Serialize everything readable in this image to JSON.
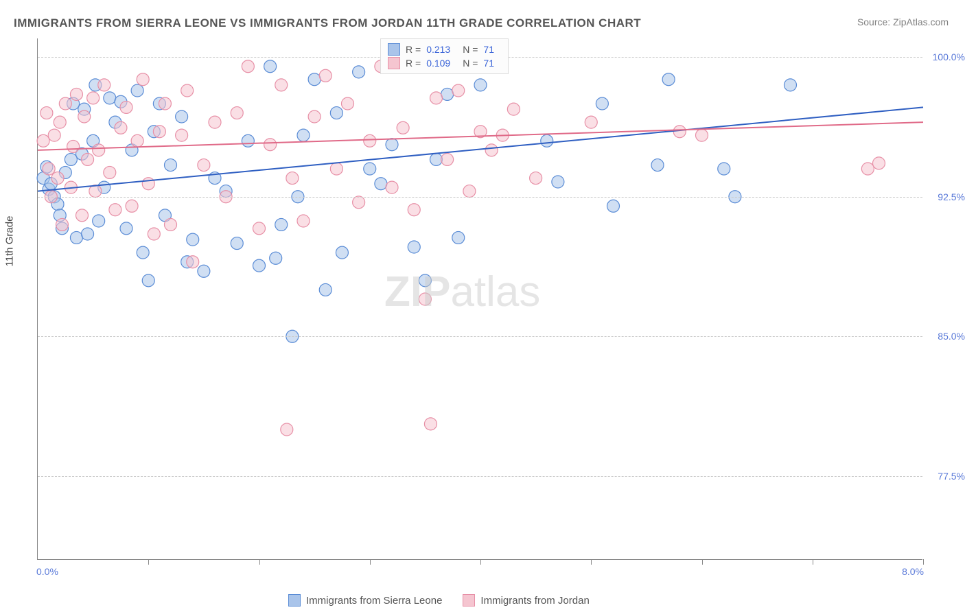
{
  "title": "IMMIGRANTS FROM SIERRA LEONE VS IMMIGRANTS FROM JORDAN 11TH GRADE CORRELATION CHART",
  "source": "Source: ZipAtlas.com",
  "axis": {
    "ytitle": "11th Grade",
    "xmin": 0.0,
    "xmax": 8.0,
    "xmin_label": "0.0%",
    "xmax_label": "8.0%",
    "ymin": 73.0,
    "ymax": 101.0,
    "ygrid": [
      77.5,
      85.0,
      92.5,
      100.0
    ],
    "ygrid_labels": [
      "77.5%",
      "85.0%",
      "92.5%",
      "100.0%"
    ],
    "xticks": [
      1.0,
      2.0,
      3.0,
      4.0,
      5.0,
      6.0,
      7.0,
      8.0
    ]
  },
  "series": [
    {
      "name": "Immigrants from Sierra Leone",
      "color_fill": "#a9c4ea",
      "color_stroke": "#5a8cd6",
      "line_color": "#2f5fc2",
      "R": "0.213",
      "N": "71",
      "regression": {
        "x1": 0.0,
        "y1": 92.8,
        "x2": 8.0,
        "y2": 97.3
      },
      "points": [
        [
          0.05,
          93.5
        ],
        [
          0.08,
          94.1
        ],
        [
          0.1,
          92.9
        ],
        [
          0.12,
          93.2
        ],
        [
          0.15,
          92.5
        ],
        [
          0.18,
          92.1
        ],
        [
          0.2,
          91.5
        ],
        [
          0.22,
          90.8
        ],
        [
          0.25,
          93.8
        ],
        [
          0.3,
          94.5
        ],
        [
          0.32,
          97.5
        ],
        [
          0.35,
          90.3
        ],
        [
          0.4,
          94.8
        ],
        [
          0.42,
          97.2
        ],
        [
          0.45,
          90.5
        ],
        [
          0.5,
          95.5
        ],
        [
          0.52,
          98.5
        ],
        [
          0.55,
          91.2
        ],
        [
          0.6,
          93.0
        ],
        [
          0.65,
          97.8
        ],
        [
          0.7,
          96.5
        ],
        [
          0.75,
          97.6
        ],
        [
          0.8,
          90.8
        ],
        [
          0.85,
          95.0
        ],
        [
          0.9,
          98.2
        ],
        [
          0.95,
          89.5
        ],
        [
          1.0,
          88.0
        ],
        [
          1.05,
          96.0
        ],
        [
          1.1,
          97.5
        ],
        [
          1.15,
          91.5
        ],
        [
          1.2,
          94.2
        ],
        [
          1.3,
          96.8
        ],
        [
          1.35,
          89.0
        ],
        [
          1.4,
          90.2
        ],
        [
          1.5,
          88.5
        ],
        [
          1.6,
          93.5
        ],
        [
          1.7,
          92.8
        ],
        [
          1.8,
          90.0
        ],
        [
          1.9,
          95.5
        ],
        [
          2.0,
          88.8
        ],
        [
          2.1,
          99.5
        ],
        [
          2.15,
          89.2
        ],
        [
          2.2,
          91.0
        ],
        [
          2.3,
          85.0
        ],
        [
          2.35,
          92.5
        ],
        [
          2.4,
          95.8
        ],
        [
          2.5,
          98.8
        ],
        [
          2.6,
          87.5
        ],
        [
          2.7,
          97.0
        ],
        [
          2.75,
          89.5
        ],
        [
          2.9,
          99.2
        ],
        [
          3.0,
          94.0
        ],
        [
          3.1,
          93.2
        ],
        [
          3.2,
          95.3
        ],
        [
          3.3,
          100.0
        ],
        [
          3.4,
          89.8
        ],
        [
          3.5,
          88.0
        ],
        [
          3.6,
          94.5
        ],
        [
          3.7,
          98.0
        ],
        [
          3.8,
          90.3
        ],
        [
          3.9,
          99.5
        ],
        [
          4.0,
          98.5
        ],
        [
          4.6,
          95.5
        ],
        [
          4.7,
          93.3
        ],
        [
          5.1,
          97.5
        ],
        [
          5.2,
          92.0
        ],
        [
          5.6,
          94.2
        ],
        [
          5.7,
          98.8
        ],
        [
          6.2,
          94.0
        ],
        [
          6.3,
          92.5
        ],
        [
          6.8,
          98.5
        ]
      ]
    },
    {
      "name": "Immigrants from Jordan",
      "color_fill": "#f5c5d0",
      "color_stroke": "#e78fa6",
      "line_color": "#e06a88",
      "R": "0.109",
      "N": "71",
      "regression": {
        "x1": 0.0,
        "y1": 95.0,
        "x2": 8.0,
        "y2": 96.5
      },
      "points": [
        [
          0.05,
          95.5
        ],
        [
          0.08,
          97.0
        ],
        [
          0.1,
          94.0
        ],
        [
          0.12,
          92.5
        ],
        [
          0.15,
          95.8
        ],
        [
          0.18,
          93.5
        ],
        [
          0.2,
          96.5
        ],
        [
          0.22,
          91.0
        ],
        [
          0.25,
          97.5
        ],
        [
          0.3,
          93.0
        ],
        [
          0.32,
          95.2
        ],
        [
          0.35,
          98.0
        ],
        [
          0.4,
          91.5
        ],
        [
          0.42,
          96.8
        ],
        [
          0.45,
          94.5
        ],
        [
          0.5,
          97.8
        ],
        [
          0.52,
          92.8
        ],
        [
          0.55,
          95.0
        ],
        [
          0.6,
          98.5
        ],
        [
          0.65,
          93.8
        ],
        [
          0.7,
          91.8
        ],
        [
          0.75,
          96.2
        ],
        [
          0.8,
          97.3
        ],
        [
          0.85,
          92.0
        ],
        [
          0.9,
          95.5
        ],
        [
          0.95,
          98.8
        ],
        [
          1.0,
          93.2
        ],
        [
          1.05,
          90.5
        ],
        [
          1.1,
          96.0
        ],
        [
          1.15,
          97.5
        ],
        [
          1.2,
          91.0
        ],
        [
          1.3,
          95.8
        ],
        [
          1.35,
          98.2
        ],
        [
          1.4,
          89.0
        ],
        [
          1.5,
          94.2
        ],
        [
          1.6,
          96.5
        ],
        [
          1.7,
          92.5
        ],
        [
          1.8,
          97.0
        ],
        [
          1.9,
          99.5
        ],
        [
          2.0,
          90.8
        ],
        [
          2.1,
          95.3
        ],
        [
          2.2,
          98.5
        ],
        [
          2.25,
          80.0
        ],
        [
          2.3,
          93.5
        ],
        [
          2.4,
          91.2
        ],
        [
          2.5,
          96.8
        ],
        [
          2.6,
          99.0
        ],
        [
          2.7,
          94.0
        ],
        [
          2.8,
          97.5
        ],
        [
          2.9,
          92.2
        ],
        [
          3.0,
          95.5
        ],
        [
          3.1,
          99.5
        ],
        [
          3.2,
          93.0
        ],
        [
          3.3,
          96.2
        ],
        [
          3.4,
          91.8
        ],
        [
          3.5,
          87.0
        ],
        [
          3.6,
          97.8
        ],
        [
          3.55,
          80.3
        ],
        [
          3.7,
          94.5
        ],
        [
          3.8,
          98.2
        ],
        [
          3.9,
          92.8
        ],
        [
          4.0,
          96.0
        ],
        [
          4.1,
          95.0
        ],
        [
          4.2,
          95.8
        ],
        [
          4.3,
          97.2
        ],
        [
          4.5,
          93.5
        ],
        [
          5.0,
          96.5
        ],
        [
          5.8,
          96.0
        ],
        [
          6.0,
          95.8
        ],
        [
          7.5,
          94.0
        ],
        [
          7.6,
          94.3
        ]
      ]
    }
  ],
  "watermark": {
    "bold": "ZIP",
    "rest": "atlas"
  },
  "marker_radius": 9,
  "marker_opacity": 0.55,
  "line_width": 2
}
